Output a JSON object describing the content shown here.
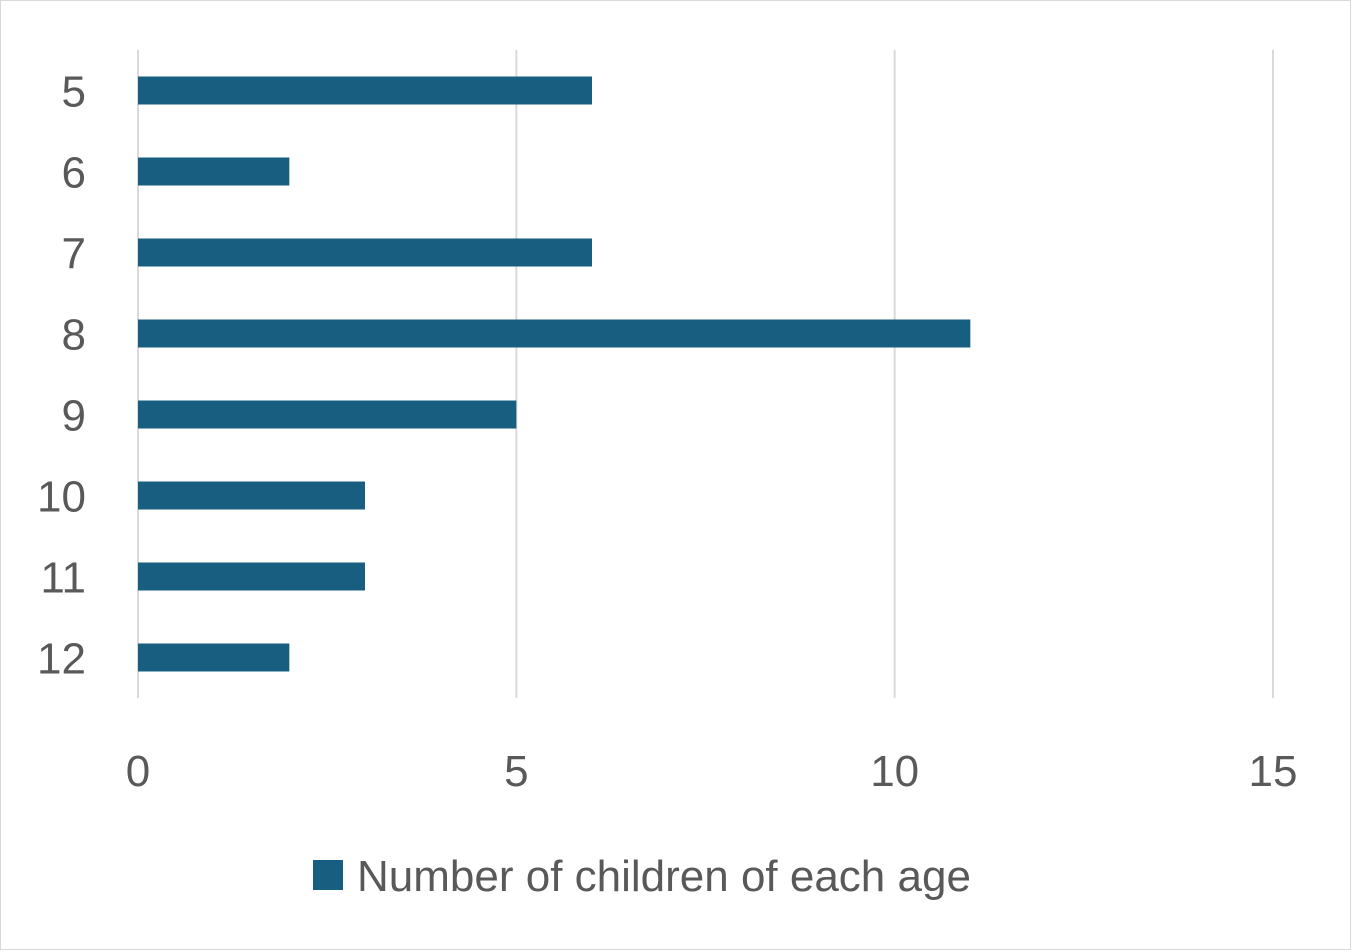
{
  "chart_data": {
    "type": "bar",
    "orientation": "horizontal",
    "categories": [
      "5",
      "6",
      "7",
      "8",
      "9",
      "10",
      "11",
      "12"
    ],
    "series": [
      {
        "name": "Number of children of each age",
        "values": [
          6,
          2,
          6,
          11,
          5,
          3,
          3,
          2
        ]
      }
    ],
    "xlim": [
      0,
      15
    ],
    "xticks": [
      "0",
      "5",
      "10",
      "15"
    ],
    "grid": true,
    "legend": "bottom",
    "colors": {
      "bar": "#175E80",
      "grid": "#d9d9d9",
      "text": "#595959"
    }
  }
}
